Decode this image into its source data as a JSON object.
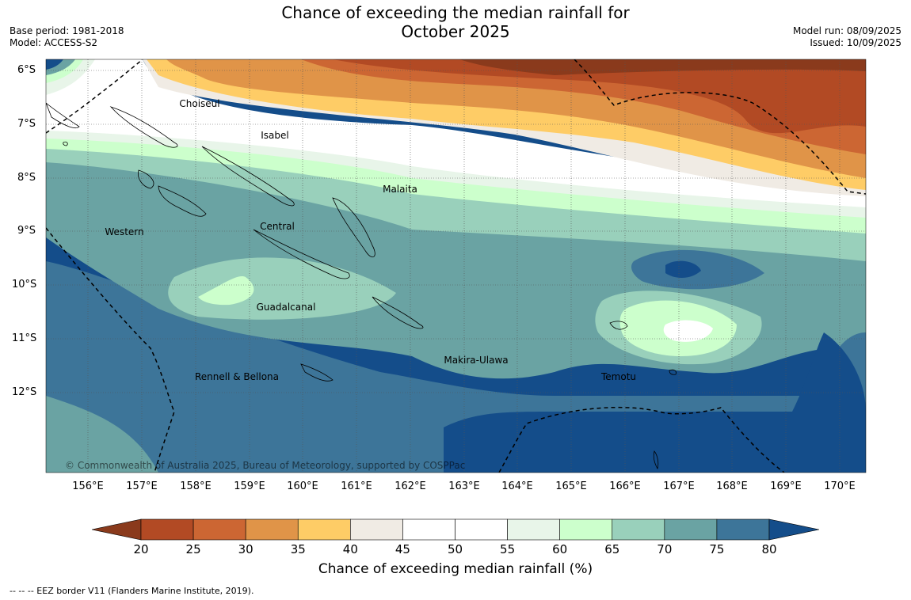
{
  "title_line1": "Chance of exceeding the median rainfall for",
  "title_line2": "October 2025",
  "base_period": "Base period: 1981-2018",
  "model": "Model: ACCESS-S2",
  "model_run": "Model run: 08/09/2025",
  "issued": "Issued: 10/09/2025",
  "lat_labels": [
    "6°S",
    "7°S",
    "8°S",
    "9°S",
    "10°S",
    "11°S",
    "12°S"
  ],
  "lon_labels": [
    "156°E",
    "157°E",
    "158°E",
    "159°E",
    "160°E",
    "161°E",
    "162°E",
    "163°E",
    "164°E",
    "165°E",
    "166°E",
    "167°E",
    "168°E",
    "169°E",
    "170°E"
  ],
  "regions": [
    {
      "name": "Choiseul"
    },
    {
      "name": "Isabel"
    },
    {
      "name": "Malaita"
    },
    {
      "name": "Western"
    },
    {
      "name": "Central"
    },
    {
      "name": "Guadalcanal"
    },
    {
      "name": "Makira-Ulawa"
    },
    {
      "name": "Rennell & Bellona"
    },
    {
      "name": "Temotu"
    }
  ],
  "copyright": "© Commonwealth of Australia 2025, Bureau of Meteorology, supported by COSPPac",
  "colorbar": {
    "ticks": [
      "20",
      "25",
      "30",
      "35",
      "40",
      "45",
      "50",
      "55",
      "60",
      "65",
      "70",
      "75",
      "80"
    ],
    "colors": [
      "#8a3a1c",
      "#b24a24",
      "#cc6633",
      "#e09448",
      "#fecc66",
      "#f0ebe4",
      "#ffffff",
      "#ffffff",
      "#e8f5e9",
      "#ccffcc",
      "#99d0bb",
      "#6aa3a3",
      "#3d7599",
      "#144d8a"
    ],
    "label": "Chance of exceeding median rainfall (%)"
  },
  "footnote": "-- -- -- EEZ border V11 (Flanders Marine Institute, 2019)."
}
